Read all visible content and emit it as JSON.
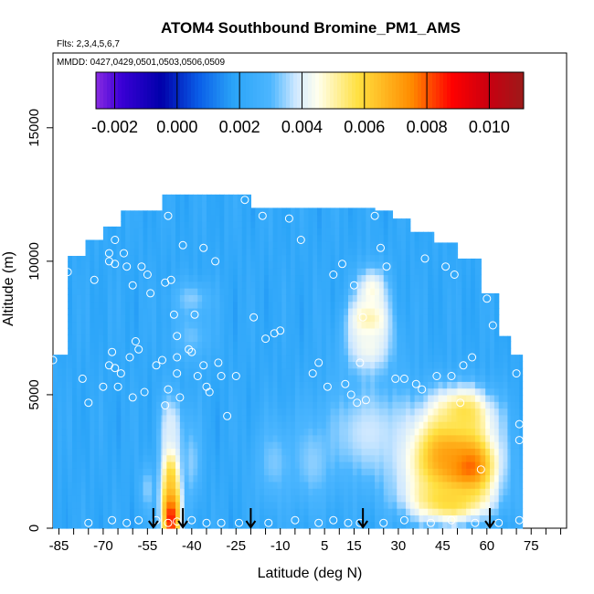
{
  "chart_data": {
    "type": "heatmap",
    "title": "ATOM4 Southbound Bromine_PM1_AMS",
    "subtitle_flights": "Flts: 2,3,4,5,6,7",
    "subtitle_dates": "MMDD: 0427,0429,0501,0503,0506,0509",
    "xlabel": "Latitude (deg N)",
    "ylabel": "Altitude (m)",
    "xlim": [
      -87,
      87
    ],
    "ylim": [
      0,
      17800
    ],
    "x_ticks": [
      -85,
      -70,
      -55,
      -40,
      -25,
      -10,
      5,
      15,
      30,
      45,
      60,
      75
    ],
    "x_tick_labels": [
      "-85",
      "-70",
      "-55",
      "-40",
      "-25",
      "-10",
      "5",
      "15",
      "30",
      "45",
      "60",
      "75"
    ],
    "x_minor_ticks": [
      -80,
      -75,
      -65,
      -60,
      -50,
      -45,
      -35,
      -30,
      -20,
      -15,
      -5,
      0,
      10,
      20,
      25,
      35,
      40,
      50,
      55,
      65,
      70,
      80,
      85
    ],
    "y_ticks": [
      0,
      5000,
      10000,
      15000
    ],
    "y_tick_labels": [
      "0",
      "5000",
      "10000",
      "15000"
    ],
    "colorbar": {
      "min": -0.0026,
      "max": 0.0111,
      "ticks": [
        -0.002,
        0.0,
        0.002,
        0.004,
        0.006,
        0.008,
        0.01
      ],
      "tick_labels": [
        "-0.002",
        "0.000",
        "0.002",
        "0.004",
        "0.006",
        "0.008",
        "0.010"
      ],
      "color_stops": [
        {
          "value": -0.0026,
          "color": "#8a2be2"
        },
        {
          "value": -0.0018,
          "color": "#3a00d6"
        },
        {
          "value": -0.0005,
          "color": "#0000aa"
        },
        {
          "value": 0.0007,
          "color": "#0a5ee8"
        },
        {
          "value": 0.0018,
          "color": "#2aa4f8"
        },
        {
          "value": 0.003,
          "color": "#4cb6ff"
        },
        {
          "value": 0.0038,
          "color": "#cfe8ff"
        },
        {
          "value": 0.0045,
          "color": "#ffffee"
        },
        {
          "value": 0.0058,
          "color": "#ffe040"
        },
        {
          "value": 0.0075,
          "color": "#ff8c00"
        },
        {
          "value": 0.0088,
          "color": "#ff0000"
        },
        {
          "value": 0.01,
          "color": "#c80010"
        },
        {
          "value": 0.0111,
          "color": "#9c1a1a"
        }
      ]
    },
    "background_value": 0.0021,
    "altitude_coverage": [
      {
        "lat_from": -87,
        "lat_to": -82,
        "alt_max": 6500
      },
      {
        "lat_from": -82,
        "lat_to": -76,
        "alt_max": 10200
      },
      {
        "lat_from": -76,
        "lat_to": -70,
        "alt_max": 10800
      },
      {
        "lat_from": -70,
        "lat_to": -64,
        "alt_max": 11300
      },
      {
        "lat_from": -64,
        "lat_to": -58,
        "alt_max": 11900
      },
      {
        "lat_from": -58,
        "lat_to": -50,
        "alt_max": 11900
      },
      {
        "lat_from": -50,
        "lat_to": -20,
        "alt_max": 12500
      },
      {
        "lat_from": -20,
        "lat_to": 22,
        "alt_max": 12000
      },
      {
        "lat_from": 22,
        "lat_to": 28,
        "alt_max": 11900
      },
      {
        "lat_from": 28,
        "lat_to": 34,
        "alt_max": 11600
      },
      {
        "lat_from": 34,
        "lat_to": 42,
        "alt_max": 11100
      },
      {
        "lat_from": 42,
        "lat_to": 50,
        "alt_max": 10700
      },
      {
        "lat_from": 50,
        "lat_to": 58,
        "alt_max": 10100
      },
      {
        "lat_from": 58,
        "lat_to": 64,
        "alt_max": 8800
      },
      {
        "lat_from": 64,
        "lat_to": 68,
        "alt_max": 7200
      },
      {
        "lat_from": 68,
        "lat_to": 72,
        "alt_max": 6500
      }
    ],
    "features": [
      {
        "lat": -47,
        "alt": 600,
        "lat_sigma": 2.0,
        "alt_sigma": 900,
        "value": 0.0105
      },
      {
        "lat": -47,
        "alt": 2000,
        "lat_sigma": 2.2,
        "alt_sigma": 1200,
        "value": 0.0065
      },
      {
        "lat": -47,
        "alt": 3800,
        "lat_sigma": 3.0,
        "alt_sigma": 900,
        "value": 0.004
      },
      {
        "lat": -55,
        "alt": 1500,
        "lat_sigma": 2.0,
        "alt_sigma": 700,
        "value": 0.0034
      },
      {
        "lat": -40,
        "alt": 2500,
        "lat_sigma": 2.5,
        "alt_sigma": 1200,
        "value": 0.0034
      },
      {
        "lat": 52,
        "alt": 2300,
        "lat_sigma": 6.0,
        "alt_sigma": 700,
        "value": 0.0102
      },
      {
        "lat": 46,
        "alt": 2800,
        "lat_sigma": 11.0,
        "alt_sigma": 1200,
        "value": 0.0075
      },
      {
        "lat": 47,
        "alt": 1100,
        "lat_sigma": 10.0,
        "alt_sigma": 600,
        "value": 0.006
      },
      {
        "lat": 52,
        "alt": 4300,
        "lat_sigma": 7.0,
        "alt_sigma": 700,
        "value": 0.0058
      },
      {
        "lat": 20,
        "alt": 7800,
        "lat_sigma": 4.5,
        "alt_sigma": 600,
        "value": 0.0058
      },
      {
        "lat": 21,
        "alt": 8900,
        "lat_sigma": 4.0,
        "alt_sigma": 700,
        "value": 0.0046
      },
      {
        "lat": 20,
        "alt": 6800,
        "lat_sigma": 6.0,
        "alt_sigma": 800,
        "value": 0.0044
      },
      {
        "lat": 20,
        "alt": 3600,
        "lat_sigma": 12.0,
        "alt_sigma": 1400,
        "value": 0.0038
      },
      {
        "lat": 1,
        "alt": 2500,
        "lat_sigma": 5.0,
        "alt_sigma": 1200,
        "value": 0.0034
      },
      {
        "lat": -12,
        "alt": 2500,
        "lat_sigma": 5.0,
        "alt_sigma": 1200,
        "value": 0.0033
      },
      {
        "lat": -40,
        "alt": 8600,
        "lat_sigma": 5.0,
        "alt_sigma": 500,
        "value": 0.0034
      },
      {
        "lat": -40,
        "alt": 7200,
        "lat_sigma": 5.0,
        "alt_sigma": 700,
        "value": 0.0032
      }
    ],
    "observations": [
      {
        "lat": -87,
        "alt": 6300
      },
      {
        "lat": -85,
        "alt": 9600
      },
      {
        "lat": -82,
        "alt": 9600
      },
      {
        "lat": -77,
        "alt": 5600
      },
      {
        "lat": -75,
        "alt": 4700
      },
      {
        "lat": -73,
        "alt": 9300
      },
      {
        "lat": -70,
        "alt": 5300
      },
      {
        "lat": -68,
        "alt": 10300
      },
      {
        "lat": -68,
        "alt": 10000
      },
      {
        "lat": -68,
        "alt": 6100
      },
      {
        "lat": -67,
        "alt": 6600
      },
      {
        "lat": -66,
        "alt": 9900
      },
      {
        "lat": -66,
        "alt": 10800
      },
      {
        "lat": -66,
        "alt": 6000
      },
      {
        "lat": -65,
        "alt": 5300
      },
      {
        "lat": -64,
        "alt": 5800
      },
      {
        "lat": -63,
        "alt": 10300
      },
      {
        "lat": -62,
        "alt": 9800
      },
      {
        "lat": -61,
        "alt": 6400
      },
      {
        "lat": -60,
        "alt": 4900
      },
      {
        "lat": -60,
        "alt": 9100
      },
      {
        "lat": -59,
        "alt": 7000
      },
      {
        "lat": -58,
        "alt": 6700
      },
      {
        "lat": -57,
        "alt": 9800
      },
      {
        "lat": -56,
        "alt": 5100
      },
      {
        "lat": -55,
        "alt": 9500
      },
      {
        "lat": -54,
        "alt": 8800
      },
      {
        "lat": -52,
        "alt": 6100
      },
      {
        "lat": -50,
        "alt": 6300
      },
      {
        "lat": -49,
        "alt": 9200
      },
      {
        "lat": -49,
        "alt": 4600
      },
      {
        "lat": -48,
        "alt": 5200
      },
      {
        "lat": -48,
        "alt": 11700
      },
      {
        "lat": -47,
        "alt": 9300
      },
      {
        "lat": -46,
        "alt": 8000
      },
      {
        "lat": -45,
        "alt": 7200
      },
      {
        "lat": -45,
        "alt": 6400
      },
      {
        "lat": -45,
        "alt": 5800
      },
      {
        "lat": -44,
        "alt": 4900
      },
      {
        "lat": -43,
        "alt": 10600
      },
      {
        "lat": -41,
        "alt": 6700
      },
      {
        "lat": -40,
        "alt": 6600
      },
      {
        "lat": -39,
        "alt": 8000
      },
      {
        "lat": -38,
        "alt": 5700
      },
      {
        "lat": -36,
        "alt": 10500
      },
      {
        "lat": -36,
        "alt": 6100
      },
      {
        "lat": -35,
        "alt": 5300
      },
      {
        "lat": -34,
        "alt": 5100
      },
      {
        "lat": -32,
        "alt": 10000
      },
      {
        "lat": -31,
        "alt": 6200
      },
      {
        "lat": -30,
        "alt": 5700
      },
      {
        "lat": -28,
        "alt": 4200
      },
      {
        "lat": -25,
        "alt": 5700
      },
      {
        "lat": -22,
        "alt": 12300
      },
      {
        "lat": -19,
        "alt": 7900
      },
      {
        "lat": -16,
        "alt": 11700
      },
      {
        "lat": -15,
        "alt": 7100
      },
      {
        "lat": -12,
        "alt": 7300
      },
      {
        "lat": -10,
        "alt": 7400
      },
      {
        "lat": -7,
        "alt": 11600
      },
      {
        "lat": -3,
        "alt": 10800
      },
      {
        "lat": 1,
        "alt": 5800
      },
      {
        "lat": 3,
        "alt": 6200
      },
      {
        "lat": 6,
        "alt": 5300
      },
      {
        "lat": 8,
        "alt": 9500
      },
      {
        "lat": 11,
        "alt": 9900
      },
      {
        "lat": 12,
        "alt": 5400
      },
      {
        "lat": 14,
        "alt": 5000
      },
      {
        "lat": 15,
        "alt": 9100
      },
      {
        "lat": 16,
        "alt": 4700
      },
      {
        "lat": 17,
        "alt": 6200
      },
      {
        "lat": 18,
        "alt": 7900
      },
      {
        "lat": 19,
        "alt": 4800
      },
      {
        "lat": 22,
        "alt": 11700
      },
      {
        "lat": 24,
        "alt": 10500
      },
      {
        "lat": 26,
        "alt": 9800
      },
      {
        "lat": 29,
        "alt": 5600
      },
      {
        "lat": 32,
        "alt": 5600
      },
      {
        "lat": 36,
        "alt": 5400
      },
      {
        "lat": 38,
        "alt": 5200
      },
      {
        "lat": 39,
        "alt": 10100
      },
      {
        "lat": 43,
        "alt": 5700
      },
      {
        "lat": 46,
        "alt": 9800
      },
      {
        "lat": 48,
        "alt": 5700
      },
      {
        "lat": 49,
        "alt": 9500
      },
      {
        "lat": 51,
        "alt": 4700
      },
      {
        "lat": 52,
        "alt": 6100
      },
      {
        "lat": 55,
        "alt": 6400
      },
      {
        "lat": 58,
        "alt": 2200
      },
      {
        "lat": 59,
        "alt": 11200
      },
      {
        "lat": 60,
        "alt": 8600
      },
      {
        "lat": 62,
        "alt": 7600
      },
      {
        "lat": 70,
        "alt": 5800
      },
      {
        "lat": 71,
        "alt": 3900
      },
      {
        "lat": 71,
        "alt": 3300
      },
      {
        "lat": -75,
        "alt": 200
      },
      {
        "lat": -67,
        "alt": 300
      },
      {
        "lat": -62,
        "alt": 200
      },
      {
        "lat": -58,
        "alt": 300
      },
      {
        "lat": -52,
        "alt": 300
      },
      {
        "lat": -48,
        "alt": 200
      },
      {
        "lat": -45,
        "alt": 250
      },
      {
        "lat": -40,
        "alt": 300
      },
      {
        "lat": -35,
        "alt": 200
      },
      {
        "lat": -30,
        "alt": 200
      },
      {
        "lat": -24,
        "alt": 200
      },
      {
        "lat": -14,
        "alt": 200
      },
      {
        "lat": -5,
        "alt": 300
      },
      {
        "lat": 3,
        "alt": 200
      },
      {
        "lat": 8,
        "alt": 300
      },
      {
        "lat": 13,
        "alt": 200
      },
      {
        "lat": 17,
        "alt": 200
      },
      {
        "lat": 25,
        "alt": 200
      },
      {
        "lat": 32,
        "alt": 300
      },
      {
        "lat": 41,
        "alt": 200
      },
      {
        "lat": 48,
        "alt": 300
      },
      {
        "lat": 56,
        "alt": 200
      },
      {
        "lat": 64,
        "alt": 200
      },
      {
        "lat": 71,
        "alt": 300
      }
    ],
    "arrow_latitudes": [
      -53,
      -43,
      -20,
      18,
      61
    ]
  }
}
